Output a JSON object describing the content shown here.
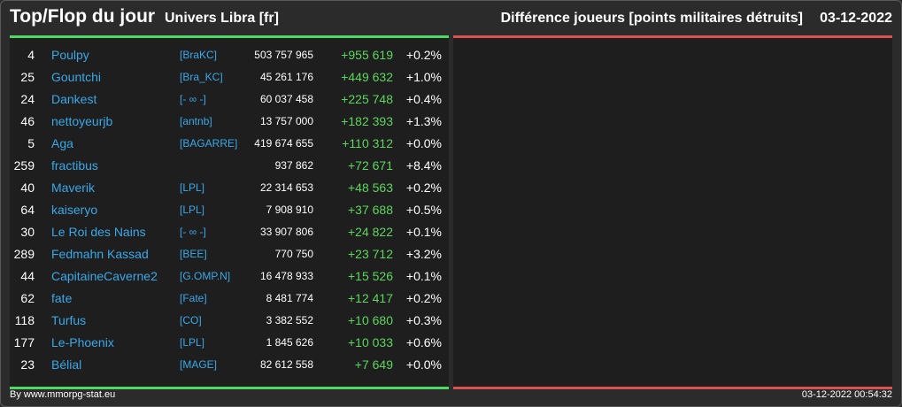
{
  "header": {
    "title": "Top/Flop du jour",
    "universe": "Univers Libra [fr]",
    "metric": "Différence joueurs [points militaires détruits]",
    "date": "03-12-2022"
  },
  "colors": {
    "top_accent": "#4cd964",
    "flop_accent": "#d9534f",
    "link": "#3aa8e8",
    "positive": "#5cd65c"
  },
  "top_rows": [
    {
      "rank": "4",
      "name": "Poulpy",
      "alliance": "[BraKC]",
      "points": "503 757 965",
      "diff": "+955 619",
      "pct": "+0.2%"
    },
    {
      "rank": "25",
      "name": "Gountchi",
      "alliance": "[Bra_KC]",
      "points": "45 261 176",
      "diff": "+449 632",
      "pct": "+1.0%"
    },
    {
      "rank": "24",
      "name": "Dankest",
      "alliance": "[- ∞ -]",
      "points": "60 037 458",
      "diff": "+225 748",
      "pct": "+0.4%"
    },
    {
      "rank": "46",
      "name": "nettoyeurjb",
      "alliance": "[antnb]",
      "points": "13 757 000",
      "diff": "+182 393",
      "pct": "+1.3%"
    },
    {
      "rank": "5",
      "name": "Aga",
      "alliance": "[BAGARRE]",
      "points": "419 674 655",
      "diff": "+110 312",
      "pct": "+0.0%"
    },
    {
      "rank": "259",
      "name": "fractibus",
      "alliance": "",
      "points": "937 862",
      "diff": "+72 671",
      "pct": "+8.4%"
    },
    {
      "rank": "40",
      "name": "Maverik",
      "alliance": "[LPL]",
      "points": "22 314 653",
      "diff": "+48 563",
      "pct": "+0.2%"
    },
    {
      "rank": "64",
      "name": "kaiseryo",
      "alliance": "[LPL]",
      "points": "7 908 910",
      "diff": "+37 688",
      "pct": "+0.5%"
    },
    {
      "rank": "30",
      "name": "Le Roi des Nains",
      "alliance": "[- ∞ -]",
      "points": "33 907 806",
      "diff": "+24 822",
      "pct": "+0.1%"
    },
    {
      "rank": "289",
      "name": "Fedmahn Kassad",
      "alliance": "[BEE]",
      "points": "770 750",
      "diff": "+23 712",
      "pct": "+3.2%"
    },
    {
      "rank": "44",
      "name": "CapitaineCaverne2",
      "alliance": "[G.OMP.N]",
      "points": "16 478 933",
      "diff": "+15 526",
      "pct": "+0.1%"
    },
    {
      "rank": "62",
      "name": "fate",
      "alliance": "[Fate]",
      "points": "8 481 774",
      "diff": "+12 417",
      "pct": "+0.2%"
    },
    {
      "rank": "118",
      "name": "Turfus",
      "alliance": "[CO]",
      "points": "3 382 552",
      "diff": "+10 680",
      "pct": "+0.3%"
    },
    {
      "rank": "177",
      "name": "Le-Phoenix",
      "alliance": "[LPL]",
      "points": "1 845 626",
      "diff": "+10 033",
      "pct": "+0.6%"
    },
    {
      "rank": "23",
      "name": "Bélial",
      "alliance": "[MAGE]",
      "points": "82 612 558",
      "diff": "+7 649",
      "pct": "+0.0%"
    }
  ],
  "flop_rows": [],
  "footer": {
    "credit": "By www.mmorpg-stat.eu",
    "timestamp": "03-12-2022 00:54:32"
  }
}
